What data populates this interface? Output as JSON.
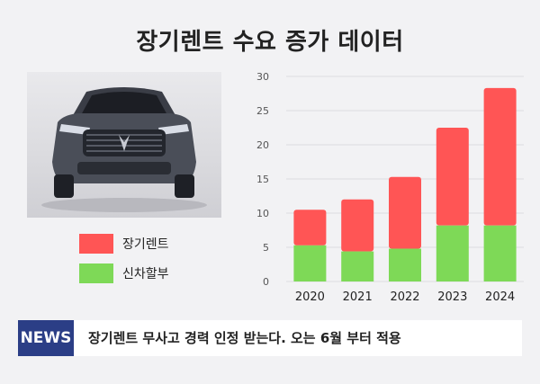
{
  "title": "장기렌트 수요 증가 데이터",
  "photo": {
    "alt": "SUV"
  },
  "legend": [
    {
      "label": "장기렌트",
      "color": "#ff5555"
    },
    {
      "label": "신차할부",
      "color": "#7ed957"
    }
  ],
  "chart_data": {
    "type": "bar",
    "stacked": true,
    "categories": [
      "2020",
      "2021",
      "2022",
      "2023",
      "2024"
    ],
    "series": [
      {
        "name": "신차할부",
        "color": "#7ed957",
        "values": [
          5.3,
          4.4,
          4.8,
          8.2,
          8.2
        ]
      },
      {
        "name": "장기렌트",
        "color": "#ff5555",
        "values": [
          5.2,
          7.6,
          10.5,
          14.3,
          20.1
        ]
      }
    ],
    "ylim": [
      0,
      30
    ],
    "yticks": [
      "0",
      "5",
      "10",
      "15",
      "20",
      "25",
      "30"
    ],
    "grid": true,
    "legend_position": "left"
  },
  "news": {
    "badge": "NEWS",
    "headline": "장기렌트 무사고 경력 인정 받는다. 오는 6월 부터 적용"
  }
}
